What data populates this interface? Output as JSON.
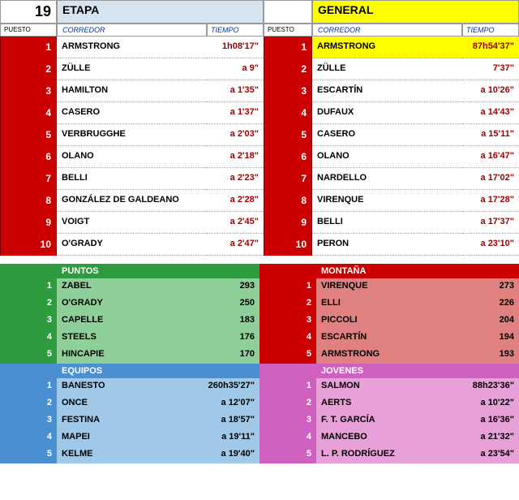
{
  "stage_number": "19",
  "headers": {
    "etapa": "ETAPA",
    "general": "GENERAL",
    "puesto": "PUESTO",
    "corredor": "CORREDOR",
    "tiempo": "TIEMPO"
  },
  "etapa": [
    {
      "r": "1",
      "n": "ARMSTRONG",
      "t": "1h08'17\""
    },
    {
      "r": "2",
      "n": "ZÜLLE",
      "t": "a 9\""
    },
    {
      "r": "3",
      "n": "HAMILTON",
      "t": "a 1'35\""
    },
    {
      "r": "4",
      "n": "CASERO",
      "t": "a 1'37\""
    },
    {
      "r": "5",
      "n": "VERBRUGGHE",
      "t": "a 2'03\""
    },
    {
      "r": "6",
      "n": "OLANO",
      "t": "a 2'18\""
    },
    {
      "r": "7",
      "n": "BELLI",
      "t": "a 2'23\""
    },
    {
      "r": "8",
      "n": "GONZÁLEZ DE GALDEANO",
      "t": "a 2'28\""
    },
    {
      "r": "9",
      "n": "VOIGT",
      "t": "a 2'45\""
    },
    {
      "r": "10",
      "n": "O'GRADY",
      "t": "a 2'47\""
    }
  ],
  "general": [
    {
      "r": "1",
      "n": "ARMSTRONG",
      "t": "87h54'37\""
    },
    {
      "r": "2",
      "n": "ZÜLLE",
      "t": "7'37\""
    },
    {
      "r": "3",
      "n": "ESCARTÍN",
      "t": "a 10'26\""
    },
    {
      "r": "4",
      "n": "DUFAUX",
      "t": "a 14'43\""
    },
    {
      "r": "5",
      "n": "CASERO",
      "t": "a 15'11\""
    },
    {
      "r": "6",
      "n": "OLANO",
      "t": "a 16'47\""
    },
    {
      "r": "7",
      "n": "NARDELLO",
      "t": "a 17'02\""
    },
    {
      "r": "8",
      "n": "VIRENQUE",
      "t": "a 17'28\""
    },
    {
      "r": "9",
      "n": "BELLI",
      "t": "a 17'37\""
    },
    {
      "r": "10",
      "n": "PERON",
      "t": "a 23'10\""
    }
  ],
  "secondary": {
    "puntos": {
      "title": "PUNTOS",
      "rows": [
        {
          "r": "1",
          "n": "ZABEL",
          "t": "293"
        },
        {
          "r": "2",
          "n": "O'GRADY",
          "t": "250"
        },
        {
          "r": "3",
          "n": "CAPELLE",
          "t": "183"
        },
        {
          "r": "4",
          "n": "STEELS",
          "t": "176"
        },
        {
          "r": "5",
          "n": "HINCAPIE",
          "t": "170"
        }
      ]
    },
    "montana": {
      "title": "MONTAÑA",
      "rows": [
        {
          "r": "1",
          "n": "VIRENQUE",
          "t": "273"
        },
        {
          "r": "2",
          "n": "ELLI",
          "t": "226"
        },
        {
          "r": "3",
          "n": "PICCOLI",
          "t": "204"
        },
        {
          "r": "4",
          "n": "ESCARTÍN",
          "t": "194"
        },
        {
          "r": "5",
          "n": "ARMSTRONG",
          "t": "193"
        }
      ]
    },
    "equipos": {
      "title": "EQUIPOS",
      "rows": [
        {
          "r": "1",
          "n": "BANESTO",
          "t": "260h35'27\""
        },
        {
          "r": "2",
          "n": "ONCE",
          "t": "a 12'07\""
        },
        {
          "r": "3",
          "n": "FESTINA",
          "t": "a 18'57\""
        },
        {
          "r": "4",
          "n": "MAPEI",
          "t": "a 19'11\""
        },
        {
          "r": "5",
          "n": "KELME",
          "t": "a 19'40\""
        }
      ]
    },
    "jovenes": {
      "title": "JOVENES",
      "rows": [
        {
          "r": "1",
          "n": "SALMON",
          "t": "88h23'36\""
        },
        {
          "r": "2",
          "n": "AERTS",
          "t": "a 10'22\""
        },
        {
          "r": "3",
          "n": "F. T. GARCÍA",
          "t": "a 16'36\""
        },
        {
          "r": "4",
          "n": "MANCEBO",
          "t": "a 21'32\""
        },
        {
          "r": "5",
          "n": "L. P. RODRÍGUEZ",
          "t": "a 23'54\""
        }
      ]
    }
  }
}
